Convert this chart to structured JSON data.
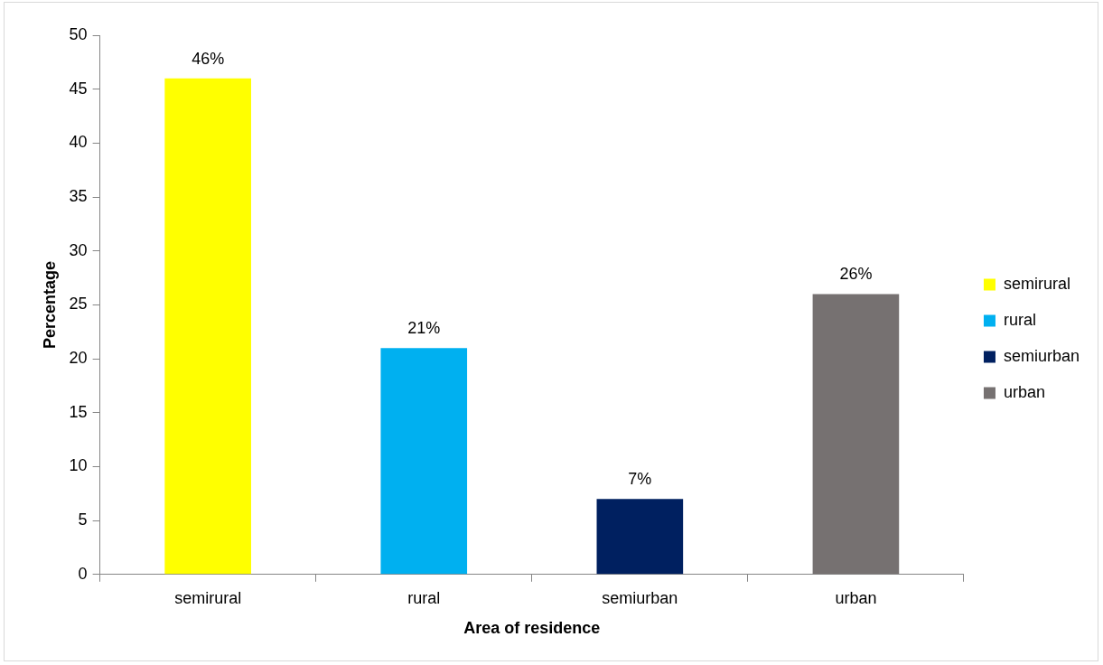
{
  "chart_data": {
    "type": "bar",
    "xlabel": "Area of residence",
    "ylabel": "Percentage",
    "categories": [
      "semirural",
      "rural",
      "semiurban",
      "urban"
    ],
    "series": [
      {
        "name": "semirural",
        "color": "#ffff00",
        "values": [
          46,
          null,
          null,
          null
        ],
        "value_labels": [
          "46%",
          null,
          null,
          null
        ]
      },
      {
        "name": "rural",
        "color": "#00b0f0",
        "values": [
          null,
          21,
          null,
          null
        ],
        "value_labels": [
          null,
          "21%",
          null,
          null
        ]
      },
      {
        "name": "semiurban",
        "color": "#002060",
        "values": [
          null,
          null,
          7,
          null
        ],
        "value_labels": [
          null,
          null,
          "7%",
          null
        ]
      },
      {
        "name": "urban",
        "color": "#767171",
        "values": [
          null,
          null,
          null,
          26
        ],
        "value_labels": [
          null,
          null,
          null,
          "26%"
        ]
      }
    ],
    "ylim": [
      0,
      50
    ],
    "yticks": [
      0,
      5,
      10,
      15,
      20,
      25,
      30,
      35,
      40,
      45,
      50
    ],
    "grid": false,
    "legend": "right"
  }
}
